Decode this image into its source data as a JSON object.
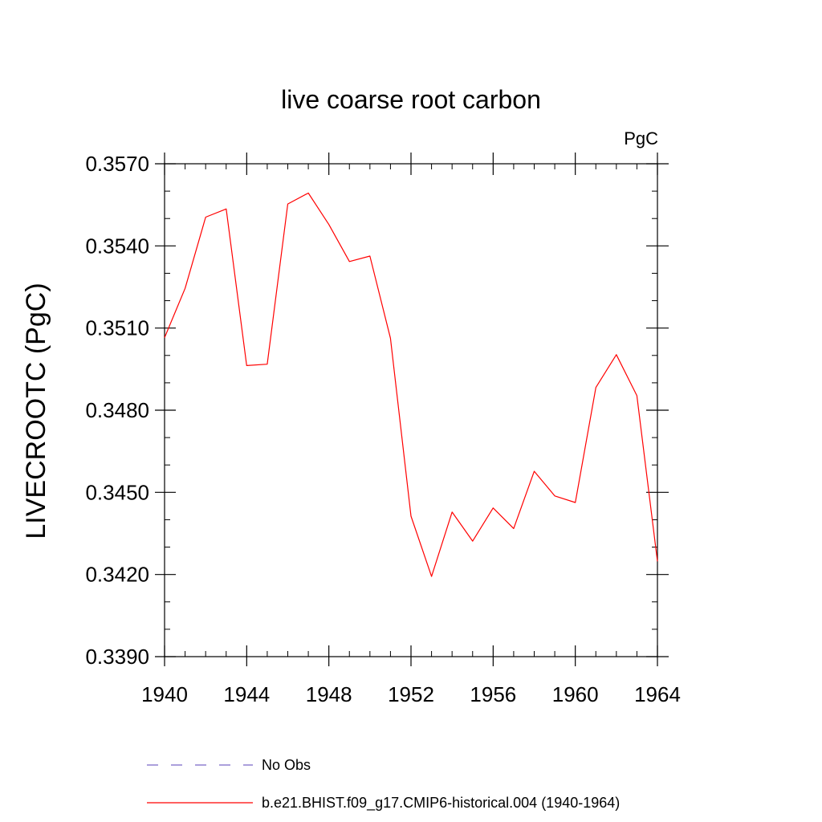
{
  "chart_data": {
    "type": "line",
    "title": "live coarse root carbon",
    "units": "PgC",
    "xlabel": "",
    "ylabel": "LIVECROOTC  (PgC)",
    "xlim": [
      1940,
      1964
    ],
    "ylim": [
      0.339,
      0.357
    ],
    "x_ticks": [
      1940,
      1944,
      1948,
      1952,
      1956,
      1960,
      1964
    ],
    "x_tick_labels": [
      "1940",
      "1944",
      "1948",
      "1952",
      "1956",
      "1960",
      "1964"
    ],
    "y_ticks": [
      0.339,
      0.342,
      0.345,
      0.348,
      0.351,
      0.354,
      0.357
    ],
    "y_tick_labels": [
      "0.3390",
      "0.3420",
      "0.3450",
      "0.3480",
      "0.3510",
      "0.3540",
      "0.3570"
    ],
    "x_minor_step": 1,
    "y_minor_step": 0.001,
    "grid": false,
    "series": [
      {
        "name": "b.e21.BHIST.f09_g17.CMIP6-historical.004 (1940-1964)",
        "color": "#ff0000",
        "style": "solid",
        "x": [
          1940,
          1941,
          1942,
          1943,
          1944,
          1945,
          1946,
          1947,
          1948,
          1949,
          1950,
          1951,
          1952,
          1953,
          1954,
          1955,
          1956,
          1957,
          1958,
          1959,
          1960,
          1961,
          1962,
          1963,
          1964
        ],
        "values": [
          0.35065,
          0.35245,
          0.35505,
          0.35535,
          0.34963,
          0.34968,
          0.35553,
          0.35593,
          0.35478,
          0.35343,
          0.35363,
          0.35063,
          0.34413,
          0.34193,
          0.34428,
          0.34322,
          0.34443,
          0.34368,
          0.34577,
          0.34487,
          0.34463,
          0.34883,
          0.35003,
          0.34853,
          0.34248
        ]
      }
    ],
    "legend": {
      "placement": "bottom",
      "entries": [
        {
          "label": "No Obs",
          "color": "#7b68c8",
          "style": "dashed"
        },
        {
          "label": "b.e21.BHIST.f09_g17.CMIP6-historical.004 (1940-1964)",
          "color": "#ff0000",
          "style": "solid"
        }
      ]
    },
    "colors": {
      "axis": "#000000",
      "series": "#ff0000",
      "no_obs": "#7b68c8"
    }
  }
}
